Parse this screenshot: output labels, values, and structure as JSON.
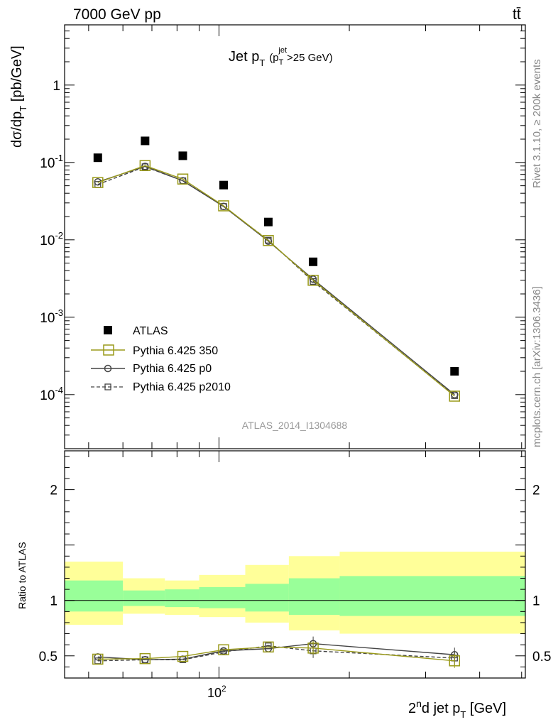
{
  "header": {
    "left": "7000 GeV pp",
    "right": "tt̄"
  },
  "side_labels": {
    "top": "Rivet 3.1.10, ≥ 200k events",
    "bottom": "mcplots.cern.ch [arXiv:1306.3436]"
  },
  "colors": {
    "band_outer": "#ffff99",
    "band_inner": "#99ff99",
    "pythia_350": "#9a9a1a",
    "pythia_p0": "#444444",
    "pythia_p2010": "#444444",
    "atlas": "#000000"
  },
  "chart_data": [
    {
      "type": "scatter",
      "title": "Jet p_T (p_T^jet>25 GeV)",
      "title_main": "Jet p",
      "title_paren": "(p",
      "title_sup": "jet",
      "title_rest": ">25 GeV)",
      "sub_T": "T",
      "ylabel": "dσ/dp",
      "ylabel_unit": " [pb/GeV]",
      "yscale": "log",
      "ylim": [
        2e-05,
        6
      ],
      "xscale": "log",
      "xlim": [
        44,
        510
      ],
      "yticks": [
        "1",
        "10",
        "10",
        "10",
        "10"
      ],
      "ytick_values": [
        1,
        0.1,
        0.01,
        0.001,
        0.0001
      ],
      "ytick_exps": [
        "",
        "-1",
        "-2",
        "-3",
        "-4"
      ],
      "watermark": "ATLAS_2014_I1304688",
      "x": [
        52.5,
        67.5,
        82.5,
        102.5,
        130,
        165,
        350
      ],
      "bin_edges": [
        40,
        60,
        75,
        90,
        115,
        145,
        190,
        510
      ],
      "series": [
        {
          "name": "ATLAS",
          "values": [
            0.115,
            0.19,
            0.122,
            0.051,
            0.017,
            0.0052,
            0.0002
          ]
        },
        {
          "name": "Pythia 6.425 350",
          "values": [
            0.055,
            0.091,
            0.061,
            0.0275,
            0.0098,
            0.003,
            9.55e-05
          ]
        },
        {
          "name": "Pythia 6.425 p0",
          "values": [
            0.056,
            0.089,
            0.058,
            0.027,
            0.0096,
            0.0031,
            0.0001
          ]
        },
        {
          "name": "Pythia 6.425 p2010",
          "values": [
            0.052,
            0.088,
            0.058,
            0.027,
            0.0099,
            0.0029,
            9.7e-05
          ]
        }
      ],
      "legend_position": "bottom-left"
    },
    {
      "type": "line",
      "ylabel": "Ratio to ATLAS",
      "xlabel_pre": "2",
      "xlabel_sup": "n",
      "xlabel_mid": "d jet p",
      "xlabel_post": " [GeV]",
      "xtick_label": "10",
      "xtick_exp": "2",
      "ylim": [
        0.3,
        2.35
      ],
      "yticks": [
        "0.5",
        "1",
        "2"
      ],
      "ytick_values": [
        0.5,
        1,
        2
      ],
      "bands": {
        "outer": [
          [
            0.78,
            1.35
          ],
          [
            0.88,
            1.2
          ],
          [
            0.87,
            1.18
          ],
          [
            0.85,
            1.23
          ],
          [
            0.8,
            1.32
          ],
          [
            0.73,
            1.4
          ],
          [
            0.7,
            1.44
          ]
        ],
        "inner": [
          [
            0.9,
            1.18
          ],
          [
            0.95,
            1.09
          ],
          [
            0.94,
            1.1
          ],
          [
            0.93,
            1.12
          ],
          [
            0.9,
            1.15
          ],
          [
            0.87,
            1.2
          ],
          [
            0.86,
            1.22
          ]
        ]
      },
      "series": [
        {
          "name": "Pythia 6.425 350",
          "values": [
            0.47,
            0.475,
            0.495,
            0.555,
            0.58,
            0.57,
            0.455
          ]
        },
        {
          "name": "Pythia 6.425 p0",
          "values": [
            0.49,
            0.465,
            0.47,
            0.545,
            0.565,
            0.61,
            0.51
          ]
        },
        {
          "name": "Pythia 6.425 p2010",
          "values": [
            0.455,
            0.465,
            0.465,
            0.535,
            0.59,
            0.545,
            0.48
          ]
        }
      ]
    }
  ]
}
